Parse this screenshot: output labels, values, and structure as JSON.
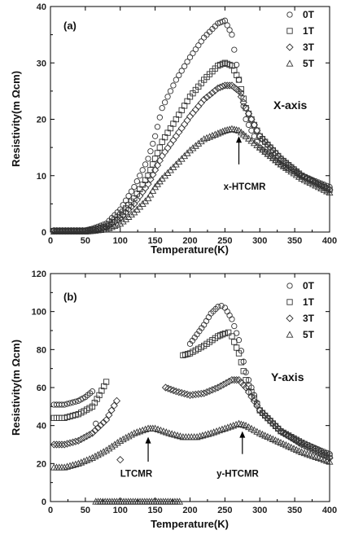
{
  "chart_data": [
    {
      "type": "scatter",
      "panel_label": "(a)",
      "axis_tag": "X-axis",
      "xlabel": "Temperature(K)",
      "ylabel": "Resistivity(m Ωcm)",
      "xlim": [
        0,
        400
      ],
      "ylim": [
        0,
        40
      ],
      "xticks": [
        "0",
        "50",
        "100",
        "150",
        "200",
        "250",
        "300",
        "350",
        "400"
      ],
      "yticks": [
        "0",
        "10",
        "20",
        "30",
        "40"
      ],
      "legend": {
        "placement": "top-right",
        "labels": [
          "0T",
          "1T",
          "3T",
          "5T"
        ]
      },
      "grid": false,
      "series": [
        {
          "name": "0T",
          "marker": "circle",
          "x": [
            5,
            50,
            60,
            80,
            100,
            120,
            140,
            150,
            160,
            180,
            200,
            220,
            240,
            250,
            260,
            270,
            280,
            300,
            330,
            360,
            400
          ],
          "y": [
            0.3,
            0.3,
            0.6,
            1.5,
            4,
            8,
            13,
            17,
            22,
            27,
            31,
            34.5,
            37,
            37.5,
            35,
            27,
            20,
            15,
            12,
            10,
            8
          ]
        },
        {
          "name": "1T",
          "marker": "square",
          "x": [
            5,
            50,
            60,
            80,
            100,
            120,
            140,
            150,
            160,
            180,
            200,
            220,
            240,
            250,
            260,
            270,
            280,
            300,
            330,
            360,
            400
          ],
          "y": [
            0.2,
            0.2,
            0.4,
            1,
            3,
            6,
            10,
            13,
            16,
            20,
            24,
            27,
            29.5,
            30,
            29.5,
            27,
            22,
            17,
            13,
            10,
            7.5
          ]
        },
        {
          "name": "3T",
          "marker": "diamond",
          "x": [
            5,
            50,
            60,
            80,
            100,
            120,
            140,
            150,
            160,
            180,
            200,
            220,
            240,
            250,
            260,
            270,
            280,
            300,
            330,
            360,
            400
          ],
          "y": [
            0.2,
            0.2,
            0.3,
            0.8,
            2.5,
            5,
            8.5,
            11,
            13.5,
            17,
            20.5,
            23.5,
            25.5,
            26,
            26,
            25,
            22,
            17,
            13,
            10,
            7.5
          ]
        },
        {
          "name": "5T",
          "marker": "triangle",
          "x": [
            5,
            50,
            60,
            80,
            100,
            120,
            140,
            150,
            160,
            180,
            200,
            220,
            240,
            250,
            260,
            270,
            280,
            300,
            330,
            360,
            400
          ],
          "y": [
            0.1,
            0.1,
            0.2,
            0.5,
            1.5,
            3.5,
            6,
            8,
            9.5,
            12,
            14.5,
            16.5,
            17.5,
            18,
            18.3,
            18,
            17,
            15,
            12,
            9.5,
            7
          ]
        }
      ],
      "annotations": [
        {
          "text": "x-HTCMR",
          "arrow_x": 270,
          "arrow_from_y": 12,
          "arrow_to_y": 17,
          "text_x": 248,
          "text_y": 7.5
        }
      ]
    },
    {
      "type": "scatter",
      "panel_label": "(b)",
      "axis_tag": "Y-axis",
      "xlabel": "Temperature(K)",
      "ylabel": "Resistivity(m Ωcm)",
      "xlim": [
        0,
        400
      ],
      "ylim": [
        0,
        120
      ],
      "xticks": [
        "0",
        "50",
        "100",
        "150",
        "200",
        "250",
        "300",
        "350",
        "400"
      ],
      "yticks": [
        "0",
        "20",
        "40",
        "60",
        "80",
        "100",
        "120"
      ],
      "legend": {
        "placement": "top-right",
        "labels": [
          "0T",
          "1T",
          "3T",
          "5T"
        ]
      },
      "grid": false,
      "series": [
        {
          "name": "0T",
          "marker": "circle",
          "x": [
            5,
            20,
            40,
            50,
            60,
            65,
            200,
            210,
            220,
            230,
            240,
            245,
            250,
            260,
            270,
            280,
            300,
            330,
            360,
            400
          ],
          "y": [
            51,
            51,
            53,
            55,
            58,
            41,
            83,
            88,
            93,
            99,
            102.5,
            103,
            102,
            96,
            85,
            68,
            48,
            37,
            31,
            25
          ]
        },
        {
          "name": "1T",
          "marker": "square",
          "x": [
            5,
            20,
            40,
            60,
            70,
            80,
            190,
            200,
            220,
            240,
            250,
            255,
            260,
            270,
            280,
            300,
            330,
            360,
            400
          ],
          "y": [
            44,
            44,
            46,
            50,
            56,
            63,
            77,
            78,
            82,
            87,
            88.5,
            89,
            87,
            78,
            64,
            48,
            37,
            31,
            24
          ]
        },
        {
          "name": "3T",
          "marker": "diamond",
          "x": [
            5,
            20,
            40,
            60,
            80,
            95,
            100,
            165,
            180,
            200,
            220,
            240,
            260,
            270,
            280,
            300,
            330,
            360,
            400
          ],
          "y": [
            30,
            30,
            32,
            36,
            43,
            53,
            22,
            60,
            58,
            56,
            57,
            60,
            64,
            64,
            60,
            48,
            37,
            30,
            23
          ]
        },
        {
          "name": "5T",
          "marker": "triangle",
          "x": [
            5,
            20,
            40,
            60,
            80,
            100,
            120,
            140,
            150,
            170,
            190,
            210,
            230,
            250,
            270,
            280,
            300,
            330,
            360,
            400
          ],
          "y": [
            18,
            18,
            20,
            23,
            27,
            32,
            36,
            38.5,
            38.5,
            36,
            34,
            34,
            36,
            38.5,
            41,
            40,
            36,
            31,
            26,
            21
          ]
        },
        {
          "name": "",
          "marker": "triangle",
          "x": [
            65,
            75,
            85,
            95,
            105,
            115,
            125,
            135,
            145,
            155,
            165,
            175,
            185
          ],
          "y": [
            0,
            0,
            0,
            0,
            0,
            0,
            0,
            0,
            0,
            0,
            0,
            0,
            0
          ]
        }
      ],
      "annotations": [
        {
          "text": "LTCMR",
          "arrow_x": 140,
          "arrow_from_y": 21,
          "arrow_to_y": 34,
          "text_x": 100,
          "text_y": 13
        },
        {
          "text": "y-HTCMR",
          "arrow_x": 275,
          "arrow_from_y": 25,
          "arrow_to_y": 37,
          "text_x": 238,
          "text_y": 13
        }
      ]
    }
  ]
}
